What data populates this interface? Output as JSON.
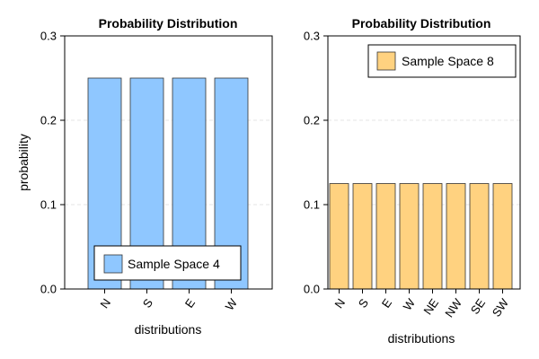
{
  "chart_data": [
    {
      "type": "bar",
      "title": "Probability Distribution",
      "xlabel": "distributions",
      "ylabel": "probability",
      "categories": [
        "N",
        "S",
        "E",
        "W"
      ],
      "series": [
        {
          "name": "Sample Space 4",
          "values": [
            0.25,
            0.25,
            0.25,
            0.25
          ],
          "color": "#8fc7ff"
        }
      ],
      "ylim": [
        0,
        0.3
      ],
      "yticks": [
        "0.0",
        "0.1",
        "0.2",
        "0.3"
      ],
      "yticks_values": [
        0.0,
        0.1,
        0.2,
        0.3
      ],
      "grid": true,
      "legend_position": "bottom-right"
    },
    {
      "type": "bar",
      "title": "Probability Distribution",
      "xlabel": "distributions",
      "ylabel": "",
      "categories": [
        "N",
        "S",
        "E",
        "W",
        "NE",
        "NW",
        "SE",
        "SW"
      ],
      "series": [
        {
          "name": "Sample Space 8",
          "values": [
            0.125,
            0.125,
            0.125,
            0.125,
            0.125,
            0.125,
            0.125,
            0.125
          ],
          "color": "#ffd280"
        }
      ],
      "ylim": [
        0,
        0.3
      ],
      "yticks": [
        "0.0",
        "0.1",
        "0.2",
        "0.3"
      ],
      "yticks_values": [
        0.0,
        0.1,
        0.2,
        0.3
      ],
      "grid": true,
      "legend_position": "top-right"
    }
  ]
}
